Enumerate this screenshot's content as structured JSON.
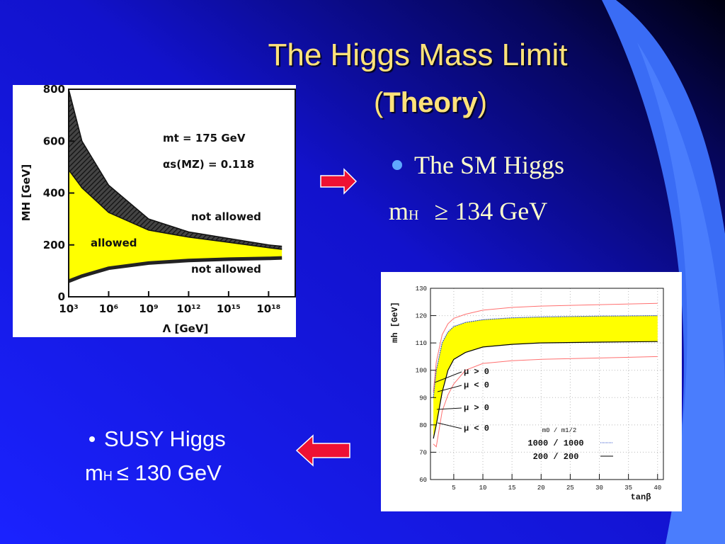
{
  "slide": {
    "title": "The Higgs Mass Limit",
    "subtitle": {
      "open": "(",
      "bold": "Theory",
      "close": ")"
    },
    "sm": {
      "bullet": "The SM Higgs",
      "m": "m",
      "sub": "H",
      "rest": "≥ 134 GeV"
    },
    "susy": {
      "bullet": "SUSY Higgs",
      "m": "m",
      "sub": "H",
      "rest": "≤ 130 GeV"
    }
  },
  "chart_data": [
    {
      "type": "band",
      "xlog": true,
      "x": [
        1000,
        10000,
        1000000,
        1000000000,
        1000000000000,
        1000000000000000,
        1000000000000000000,
        10000000000000000000
      ],
      "hatch_upper": [
        800,
        600,
        430,
        300,
        250,
        225,
        200,
        195
      ],
      "allowed_upper": [
        489,
        420,
        325,
        257,
        230,
        210,
        189,
        183
      ],
      "allowed_lower": [
        60,
        80,
        110,
        130,
        140,
        145,
        148,
        150
      ],
      "xlim": [
        1000,
        100000000000000000000
      ],
      "ylim": [
        0,
        800
      ],
      "xticks": [
        {
          "value": 1000,
          "label": "10³"
        },
        {
          "value": 1000000,
          "label": "10⁶"
        },
        {
          "value": 1000000000,
          "label": "10⁹"
        },
        {
          "value": 1000000000000,
          "label": "10¹²"
        },
        {
          "value": 1000000000000000,
          "label": "10¹⁵"
        },
        {
          "value": 1000000000000000000,
          "label": "10¹⁸"
        }
      ],
      "yticks": [
        0,
        200,
        400,
        600,
        800
      ],
      "xlabel": "Λ [GeV]",
      "ylabel": "MH [GeV]",
      "annotations": [
        "mt = 175 GeV",
        "αs(MZ) = 0.118",
        "not allowed",
        "allowed",
        "not allowed"
      ],
      "band_color": "#ffff00"
    },
    {
      "type": "line",
      "x": [
        1.5,
        2,
        3,
        4,
        5,
        7,
        10,
        15,
        20,
        30,
        40
      ],
      "series": [
        {
          "name": "1000 / 1000",
          "color": "#3355cc",
          "values": [
            90,
            100,
            110,
            114,
            116,
            117.5,
            118.5,
            119.2,
            119.5,
            119.8,
            120
          ]
        },
        {
          "name": "200 / 200",
          "color": "#000000",
          "values": [
            75,
            80,
            92,
            100,
            104,
            106.5,
            108.5,
            109.5,
            110,
            110.3,
            110.5
          ]
        }
      ],
      "outer_upper": [
        92,
        103,
        113,
        117,
        119,
        120.5,
        122,
        123,
        123.5,
        124,
        124.5
      ],
      "outer_lower": [
        73,
        72,
        85,
        91,
        95,
        100,
        102.5,
        103.5,
        104,
        104.5,
        105
      ],
      "xlim": [
        1,
        41
      ],
      "ylim": [
        60,
        130
      ],
      "xticks": [
        5,
        10,
        15,
        20,
        25,
        30,
        35,
        40
      ],
      "yticks": [
        60,
        70,
        80,
        90,
        100,
        110,
        120,
        130
      ],
      "xlabel": "tanβ",
      "ylabel": "mh [GeV]",
      "legend_title": "m0 / m1/2",
      "annotations": [
        "μ > 0",
        "μ < 0",
        "μ > 0",
        "μ < 0"
      ],
      "band_color": "#ffff00",
      "outer_color": "#ff7070",
      "grid": true
    }
  ]
}
